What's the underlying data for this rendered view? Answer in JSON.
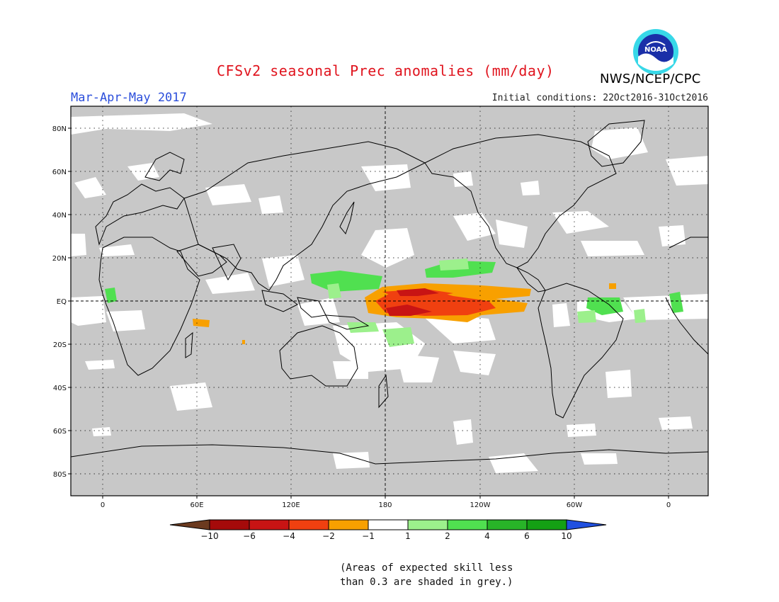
{
  "title": "CFSv2 seasonal Prec anomalies (mm/day)",
  "period": "Mar-Apr-May 2017",
  "initial_conditions": "Initial conditions: 22Oct2016-31Oct2016",
  "agency": "NWS/NCEP/CPC",
  "logo_text": "NOAA",
  "note_lines": [
    "(Areas of expected skill less",
    "than 0.3 are shaded in grey.)"
  ],
  "map": {
    "lat_ticks": [
      "80N",
      "60N",
      "40N",
      "20N",
      "EQ",
      "20S",
      "40S",
      "60S",
      "80S"
    ],
    "lon_ticks": [
      "0",
      "60E",
      "120E",
      "180",
      "120W",
      "60W",
      "0"
    ],
    "lon_range": [
      -20,
      380
    ],
    "lat_range": [
      -90,
      90
    ]
  },
  "colorbar": {
    "labels": [
      "-10",
      "-6",
      "-4",
      "-2",
      "-1",
      "1",
      "2",
      "4",
      "6",
      "10"
    ],
    "colors": [
      "#6b3a1f",
      "#a50a0a",
      "#c81414",
      "#f04010",
      "#f8a000",
      "#ffffff",
      "#9cf08c",
      "#50e050",
      "#28b428",
      "#14a014",
      "#2050e0"
    ]
  },
  "colors": {
    "skill_grey": "#c8c8c8",
    "title_red": "#e0141e",
    "period_blue": "#2a4ddb"
  }
}
